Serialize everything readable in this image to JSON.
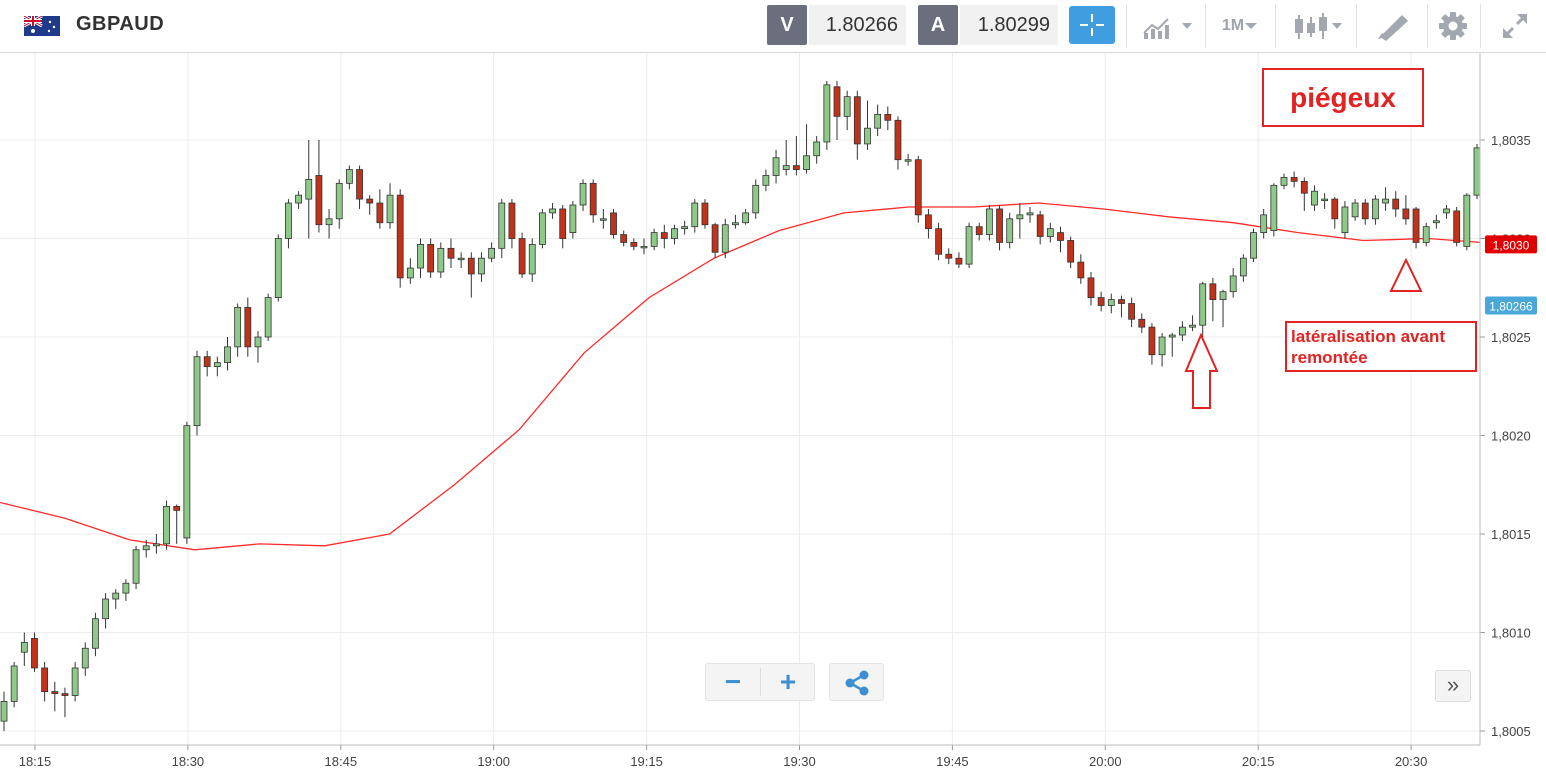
{
  "header": {
    "symbol": "GBPAUD",
    "flag_icon": "uk-australia-flag-icon",
    "sell_label": "V",
    "sell_price": "1.80266",
    "buy_label": "A",
    "buy_price": "1.80299",
    "timeframe_label": "1M",
    "accent_color": "#3f9de0"
  },
  "controls": {
    "zoom_out": "−",
    "zoom_in": "+",
    "scroll_right": "»"
  },
  "annotations": {
    "title": "piégeux",
    "lateralisation": "latéralisation avant remontée",
    "color": "#e32222"
  },
  "chart_data": {
    "type": "candlestick",
    "symbol": "GBPAUD",
    "ylim": [
      1.8005,
      1.8038
    ],
    "y_ticks": [
      "1,8005",
      "1,8010",
      "1,8015",
      "1,8020",
      "1,8025",
      "1,8030",
      "1,8035"
    ],
    "x_ticks": [
      "18:15",
      "18:30",
      "18:45",
      "19:00",
      "19:15",
      "19:30",
      "19:45",
      "20:00",
      "20:15",
      "20:30"
    ],
    "price_labels": [
      {
        "text": "1,8030",
        "value": 1.80297,
        "color": "#e00000"
      },
      {
        "text": "1,80266",
        "value": 1.80266,
        "color": "#4aa8d8"
      }
    ],
    "moving_average": [
      [
        0,
        1.80166
      ],
      [
        5,
        1.80158
      ],
      [
        10,
        1.80147
      ],
      [
        15,
        1.80142
      ],
      [
        20,
        1.80145
      ],
      [
        25,
        1.80144
      ],
      [
        30,
        1.8015
      ],
      [
        35,
        1.80175
      ],
      [
        40,
        1.80203
      ],
      [
        45,
        1.80242
      ],
      [
        50,
        1.8027
      ],
      [
        55,
        1.8029
      ],
      [
        60,
        1.80304
      ],
      [
        65,
        1.80313
      ],
      [
        70,
        1.80316
      ],
      [
        75,
        1.80316
      ],
      [
        80,
        1.80318
      ],
      [
        85,
        1.80315
      ],
      [
        90,
        1.80311
      ],
      [
        95,
        1.80308
      ],
      [
        100,
        1.80303
      ],
      [
        105,
        1.80299
      ],
      [
        110,
        1.803
      ],
      [
        114,
        1.80298
      ]
    ],
    "candles": [
      [
        1.80055,
        1.80065,
        1.8005,
        1.8007
      ],
      [
        1.80065,
        1.80083,
        1.80062,
        1.80085
      ],
      [
        1.8009,
        1.80095,
        1.80083,
        1.801
      ],
      [
        1.80097,
        1.80082,
        1.8008,
        1.801
      ],
      [
        1.80082,
        1.8007,
        1.80065,
        1.80085
      ],
      [
        1.8007,
        1.80069,
        1.8006,
        1.80075
      ],
      [
        1.80069,
        1.80068,
        1.80057,
        1.80072
      ],
      [
        1.80068,
        1.80082,
        1.80065,
        1.80085
      ],
      [
        1.80082,
        1.80092,
        1.80078,
        1.80095
      ],
      [
        1.80092,
        1.80107,
        1.80088,
        1.8011
      ],
      [
        1.80107,
        1.80117,
        1.80102,
        1.8012
      ],
      [
        1.80117,
        1.8012,
        1.80112,
        1.80122
      ],
      [
        1.8012,
        1.80125,
        1.80116,
        1.80127
      ],
      [
        1.80125,
        1.80142,
        1.80122,
        1.80144
      ],
      [
        1.80142,
        1.80144,
        1.80138,
        1.80147
      ],
      [
        1.80144,
        1.80145,
        1.8014,
        1.8015
      ],
      [
        1.80145,
        1.80164,
        1.80142,
        1.80167
      ],
      [
        1.80164,
        1.80162,
        1.80145,
        1.80165
      ],
      [
        1.80148,
        1.80205,
        1.80145,
        1.80207
      ],
      [
        1.80205,
        1.8024,
        1.802,
        1.80243
      ],
      [
        1.8024,
        1.80235,
        1.8023,
        1.80243
      ],
      [
        1.80235,
        1.80237,
        1.8023,
        1.8024
      ],
      [
        1.80237,
        1.80245,
        1.80233,
        1.8025
      ],
      [
        1.80245,
        1.80265,
        1.8024,
        1.80267
      ],
      [
        1.80265,
        1.80245,
        1.8024,
        1.8027
      ],
      [
        1.80245,
        1.8025,
        1.80237,
        1.80253
      ],
      [
        1.8025,
        1.8027,
        1.80248,
        1.80272
      ],
      [
        1.8027,
        1.803,
        1.80268,
        1.80302
      ],
      [
        1.803,
        1.80318,
        1.80295,
        1.8032
      ],
      [
        1.80318,
        1.80322,
        1.80315,
        1.80324
      ],
      [
        1.8032,
        1.8033,
        1.803,
        1.8035
      ],
      [
        1.80332,
        1.80307,
        1.80303,
        1.8035
      ],
      [
        1.80307,
        1.8031,
        1.803,
        1.80315
      ],
      [
        1.8031,
        1.80328,
        1.80305,
        1.8033
      ],
      [
        1.80328,
        1.80335,
        1.80325,
        1.80337
      ],
      [
        1.80335,
        1.8032,
        1.80315,
        1.80337
      ],
      [
        1.8032,
        1.80318,
        1.80312,
        1.80322
      ],
      [
        1.80318,
        1.80308,
        1.80305,
        1.80325
      ],
      [
        1.80308,
        1.80322,
        1.80305,
        1.80328
      ],
      [
        1.80322,
        1.8028,
        1.80275,
        1.80325
      ],
      [
        1.8028,
        1.80285,
        1.80277,
        1.8029
      ],
      [
        1.80285,
        1.80297,
        1.8028,
        1.803
      ],
      [
        1.80297,
        1.80283,
        1.8028,
        1.803
      ],
      [
        1.80283,
        1.80295,
        1.8028,
        1.80298
      ],
      [
        1.80295,
        1.8029,
        1.80285,
        1.803
      ],
      [
        1.8029,
        1.8029,
        1.80285,
        1.80293
      ],
      [
        1.8029,
        1.80282,
        1.8027,
        1.80293
      ],
      [
        1.80282,
        1.8029,
        1.80278,
        1.80293
      ],
      [
        1.8029,
        1.80295,
        1.80288,
        1.80298
      ],
      [
        1.80295,
        1.80318,
        1.8029,
        1.8032
      ],
      [
        1.80318,
        1.803,
        1.80295,
        1.8032
      ],
      [
        1.803,
        1.80282,
        1.8028,
        1.80303
      ],
      [
        1.80282,
        1.80297,
        1.80278,
        1.803
      ],
      [
        1.80297,
        1.80313,
        1.80295,
        1.80315
      ],
      [
        1.80313,
        1.80315,
        1.8031,
        1.80318
      ],
      [
        1.80315,
        1.803,
        1.80295,
        1.80317
      ],
      [
        1.80303,
        1.80317,
        1.803,
        1.80319
      ],
      [
        1.80317,
        1.80328,
        1.80314,
        1.8033
      ],
      [
        1.80328,
        1.80312,
        1.80308,
        1.8033
      ],
      [
        1.8031,
        1.8031,
        1.80305,
        1.80315
      ],
      [
        1.80313,
        1.80302,
        1.803,
        1.80315
      ],
      [
        1.80302,
        1.80298,
        1.80296,
        1.80304
      ],
      [
        1.80298,
        1.80296,
        1.80294,
        1.803
      ],
      [
        1.80296,
        1.80296,
        1.80292,
        1.803
      ],
      [
        1.80296,
        1.80303,
        1.80294,
        1.80305
      ],
      [
        1.80303,
        1.803,
        1.80295,
        1.80307
      ],
      [
        1.803,
        1.80305,
        1.80297,
        1.80307
      ],
      [
        1.80305,
        1.80306,
        1.80302,
        1.80309
      ],
      [
        1.80306,
        1.80318,
        1.80303,
        1.8032
      ],
      [
        1.80318,
        1.80307,
        1.80305,
        1.8032
      ],
      [
        1.80307,
        1.80293,
        1.8029,
        1.80308
      ],
      [
        1.80293,
        1.80307,
        1.8029,
        1.8031
      ],
      [
        1.80307,
        1.80308,
        1.80305,
        1.80312
      ],
      [
        1.80308,
        1.80313,
        1.80307,
        1.80315
      ],
      [
        1.80313,
        1.80327,
        1.8031,
        1.8033
      ],
      [
        1.80327,
        1.80332,
        1.80324,
        1.80335
      ],
      [
        1.80332,
        1.80341,
        1.80328,
        1.80345
      ],
      [
        1.80335,
        1.80337,
        1.80332,
        1.8035
      ],
      [
        1.80337,
        1.80335,
        1.80332,
        1.80352
      ],
      [
        1.80335,
        1.80342,
        1.80333,
        1.80358
      ],
      [
        1.80342,
        1.80349,
        1.80338,
        1.80352
      ],
      [
        1.80349,
        1.80378,
        1.80345,
        1.8038
      ],
      [
        1.80377,
        1.80362,
        1.8035,
        1.8038
      ],
      [
        1.80362,
        1.80372,
        1.80355,
        1.80375
      ],
      [
        1.80372,
        1.80348,
        1.8034,
        1.80375
      ],
      [
        1.80348,
        1.80356,
        1.80345,
        1.8037
      ],
      [
        1.80356,
        1.80363,
        1.80352,
        1.80368
      ],
      [
        1.80363,
        1.8036,
        1.80355,
        1.80367
      ],
      [
        1.8036,
        1.8034,
        1.80335,
        1.80362
      ],
      [
        1.8034,
        1.8034,
        1.80337,
        1.80343
      ],
      [
        1.8034,
        1.80312,
        1.80308,
        1.80342
      ],
      [
        1.80312,
        1.80305,
        1.803,
        1.80315
      ],
      [
        1.80305,
        1.80292,
        1.80289,
        1.80308
      ],
      [
        1.80292,
        1.8029,
        1.80287,
        1.80295
      ],
      [
        1.8029,
        1.80287,
        1.80285,
        1.80293
      ],
      [
        1.80287,
        1.80306,
        1.80285,
        1.80308
      ],
      [
        1.80306,
        1.80302,
        1.80299,
        1.80308
      ],
      [
        1.80302,
        1.80315,
        1.80299,
        1.80317
      ],
      [
        1.80315,
        1.80298,
        1.80294,
        1.80317
      ],
      [
        1.80298,
        1.8031,
        1.80295,
        1.80313
      ]
    ]
  }
}
